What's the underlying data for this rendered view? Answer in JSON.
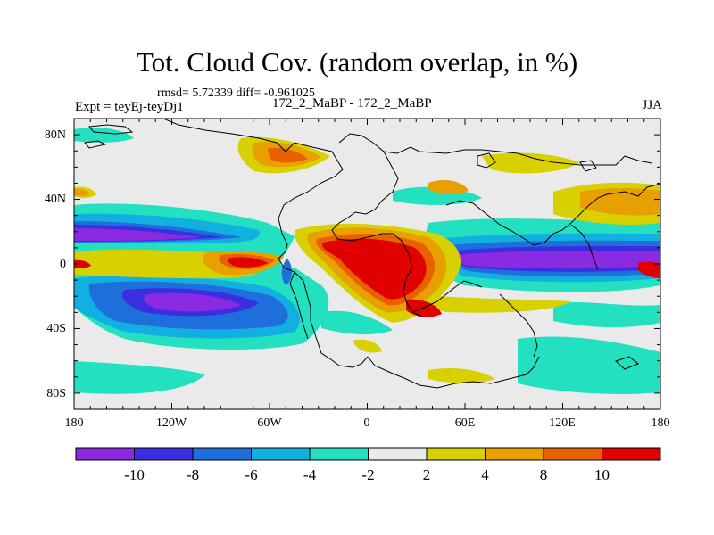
{
  "header": {
    "title": "Tot. Cloud Cov. (random overlap, in %)",
    "stats": "rmsd= 5.72339 diff= -0.961025",
    "experiment": "Expt = teyEj-teyDj1",
    "case": "172_2_MaBP - 172_2_MaBP",
    "season": "JJA"
  },
  "map": {
    "lat_ticks": [
      "80N",
      "40N",
      "0",
      "40S",
      "80S"
    ],
    "lon_ticks": [
      "180",
      "120W",
      "60W",
      "0",
      "60E",
      "120E",
      "180"
    ],
    "projection": "cylindrical equidistant",
    "lat_range": [
      -90,
      90
    ],
    "lon_range": [
      -180,
      180
    ]
  },
  "colorbar": {
    "labels": [
      "-10",
      "-8",
      "-6",
      "-4",
      "-2",
      "2",
      "4",
      "8",
      "10"
    ],
    "colors": [
      "#8a2be2",
      "#3a2ee0",
      "#1e6fdc",
      "#12b0e0",
      "#22e0c0",
      "#eaeaea",
      "#d8d000",
      "#e8a000",
      "#e86000",
      "#e00000"
    ]
  }
}
